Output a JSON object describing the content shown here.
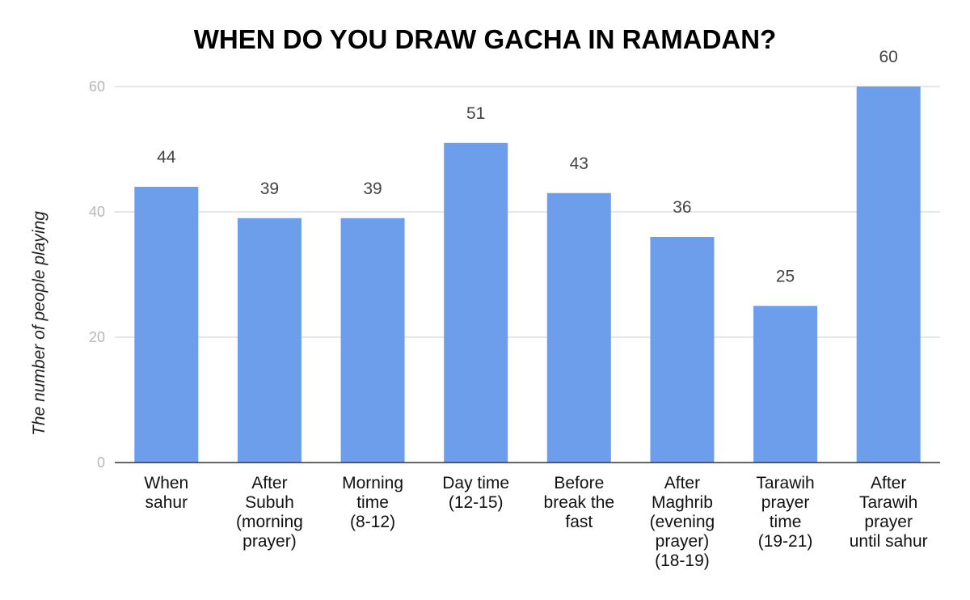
{
  "chart_data": {
    "type": "bar",
    "title": "WHEN DO YOU DRAW GACHA IN RAMADAN?",
    "xlabel": "",
    "ylabel": "The number of people playing",
    "categories": [
      [
        "When",
        "sahur"
      ],
      [
        "After",
        "Subuh",
        "(morning",
        "prayer)"
      ],
      [
        "Morning",
        "time",
        "(8-12)"
      ],
      [
        "Day time",
        "(12-15)"
      ],
      [
        "Before",
        "break the",
        "fast"
      ],
      [
        "After",
        "Maghrib",
        "(evening",
        "prayer)",
        "(18-19)"
      ],
      [
        "Tarawih",
        "prayer",
        "time",
        "(19-21)"
      ],
      [
        "After",
        "Tarawih",
        "prayer",
        "until sahur"
      ]
    ],
    "values": [
      44,
      39,
      39,
      51,
      43,
      36,
      25,
      60
    ],
    "ylim": [
      0,
      60
    ],
    "yticks": [
      0,
      20,
      40,
      60
    ],
    "grid": true,
    "legend": "none",
    "colors": {
      "bar": "#6d9eeb",
      "grid": "#cccccc",
      "axis": "#333333"
    }
  }
}
